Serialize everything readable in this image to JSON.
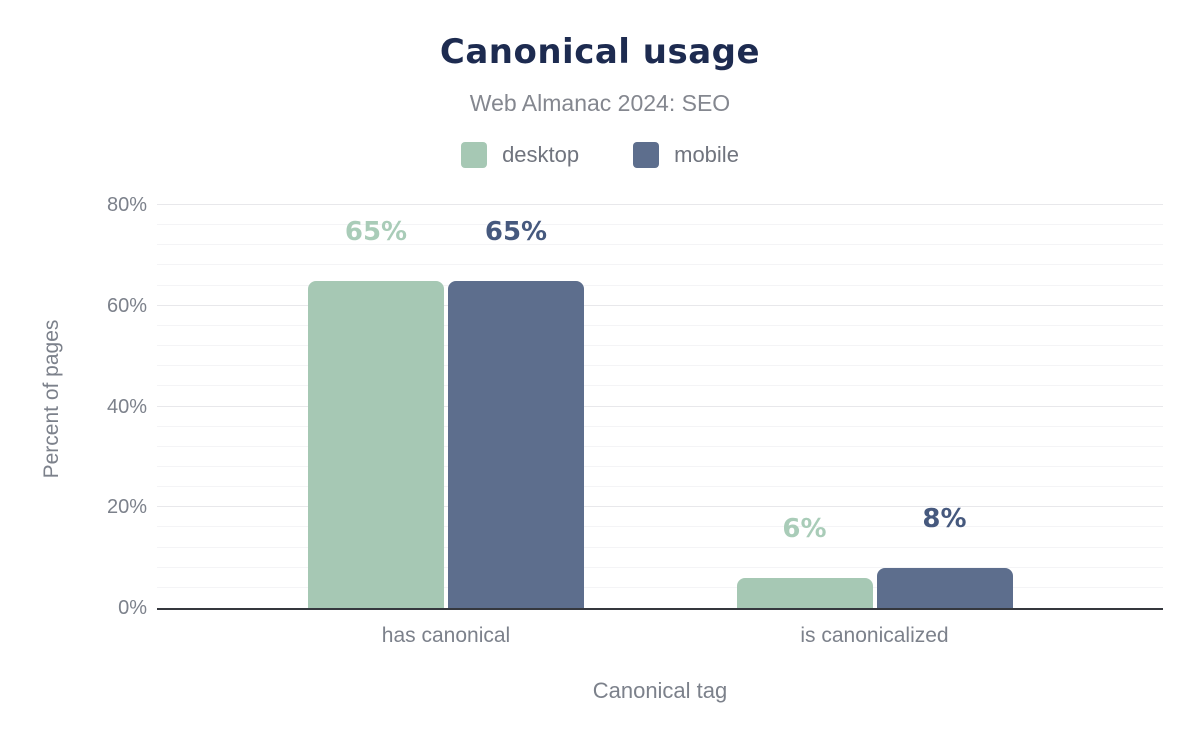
{
  "chart_data": {
    "type": "bar",
    "title": "Canonical usage",
    "subtitle": "Web Almanac 2024: SEO",
    "xlabel": "Canonical tag",
    "ylabel": "Percent of pages",
    "categories": [
      "has canonical",
      "is canonicalized"
    ],
    "series": [
      {
        "name": "desktop",
        "values": [
          65,
          6
        ],
        "labels": [
          "65%",
          "6%"
        ],
        "color": "#a6c8b4",
        "label_color": "#a9ccb8"
      },
      {
        "name": "mobile",
        "values": [
          65,
          8
        ],
        "labels": [
          "65%",
          "8%"
        ],
        "color": "#5d6e8d",
        "label_color": "#46597e"
      }
    ],
    "ylim": [
      0,
      80
    ],
    "yticks": [
      {
        "value": 0,
        "label": "0%"
      },
      {
        "value": 20,
        "label": "20%"
      },
      {
        "value": 40,
        "label": "40%"
      },
      {
        "value": 60,
        "label": "60%"
      },
      {
        "value": 80,
        "label": "80%"
      }
    ],
    "grid": {
      "minor_step_pct": 4,
      "major_step_pct": 20
    },
    "legend_position": "top"
  },
  "colors": {
    "title": "#1d2b50",
    "subtitle": "#84878f",
    "axis_text": "#7c818b",
    "axis_line": "#35383e",
    "grid_minor": "#f4f4f6",
    "grid_major": "#e8e8eb",
    "background": "#ffffff"
  }
}
